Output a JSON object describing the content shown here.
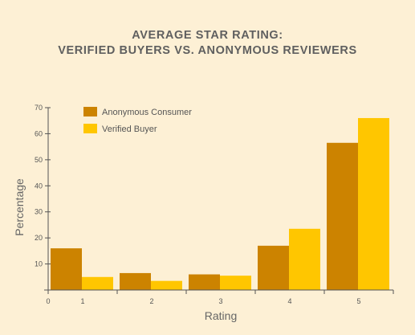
{
  "chart_data": {
    "type": "bar",
    "title": [
      "AVERAGE STAR RATING:",
      "VERIFIED BUYERS VS. ANONYMOUS REVIEWERS"
    ],
    "xlabel": "Rating",
    "ylabel": "Percentage",
    "categories": [
      "1",
      "2",
      "3",
      "4",
      "5"
    ],
    "x_origin_label": "0",
    "series": [
      {
        "name": "Anonymous Consumer",
        "values": [
          16,
          6.5,
          6,
          17,
          56.5
        ],
        "color": "#cc8300"
      },
      {
        "name": "Verified Buyer",
        "values": [
          5,
          3.5,
          5.5,
          23.5,
          66
        ],
        "color": "#ffc600"
      }
    ],
    "ylim": [
      0,
      70
    ],
    "yticks": [
      10,
      20,
      30,
      40,
      50,
      60,
      70
    ],
    "grid": false,
    "legend_position": "top-left"
  },
  "colors": {
    "background": "#fdf0d5",
    "axis": "#555555",
    "title": "#5f5f5f"
  }
}
